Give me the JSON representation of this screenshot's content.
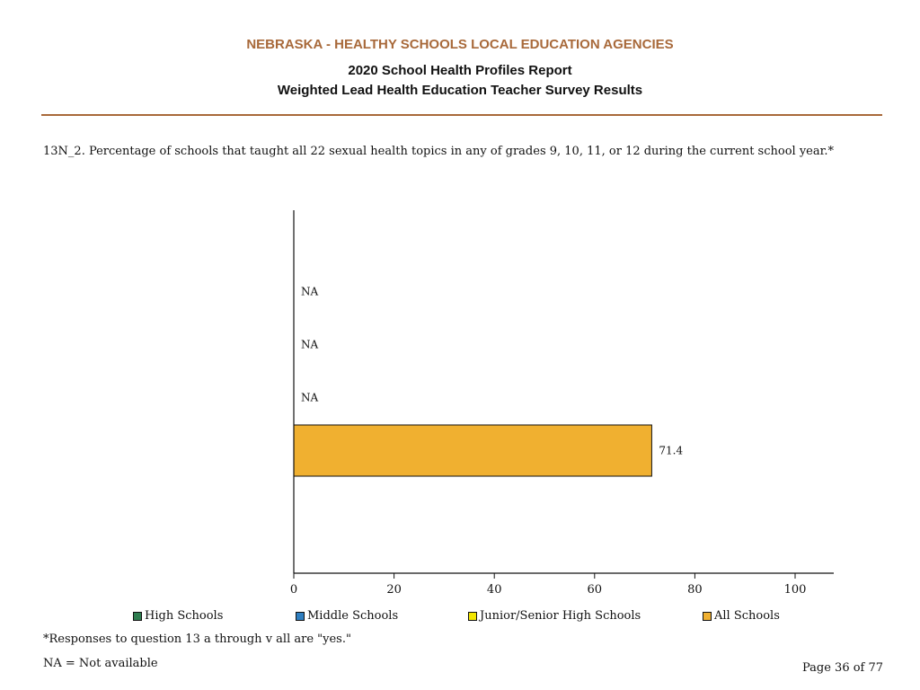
{
  "header": {
    "organization": "NEBRASKA - HEALTHY SCHOOLS LOCAL EDUCATION AGENCIES",
    "report_title": "2020 School Health Profiles Report",
    "subtitle": "Weighted Lead Health Education Teacher Survey Results"
  },
  "question": "13N_2.  Percentage of schools that taught all 22 sexual health topics in any of grades 9, 10, 11, or 12 during the current school year.*",
  "colors": {
    "accent": "#a8693a",
    "high_schools": "#2e7d4f",
    "middle_schools": "#2f7fc1",
    "junior_senior_high_schools": "#f2e600",
    "all_schools": "#f0b030"
  },
  "chart_data": {
    "type": "bar",
    "orientation": "horizontal",
    "title": "",
    "xlabel": "",
    "ylabel": "",
    "xlim": [
      0,
      100
    ],
    "x_ticks": [
      0,
      20,
      40,
      60,
      80,
      100
    ],
    "categories": [
      "High Schools",
      "Middle Schools",
      "Junior/Senior High Schools",
      "All Schools"
    ],
    "values": [
      null,
      null,
      null,
      71.4
    ],
    "value_labels": [
      "NA",
      "NA",
      "NA",
      "71.4"
    ],
    "legend": {
      "position": "bottom",
      "entries": [
        "High Schools",
        "Middle Schools",
        "Junior/Senior High Schools",
        "All Schools"
      ]
    },
    "grid": false
  },
  "footer": {
    "footnote": "*Responses to question 13 a through v all are \"yes.\"",
    "na_note": "NA = Not available",
    "page": "Page 36 of 77"
  }
}
